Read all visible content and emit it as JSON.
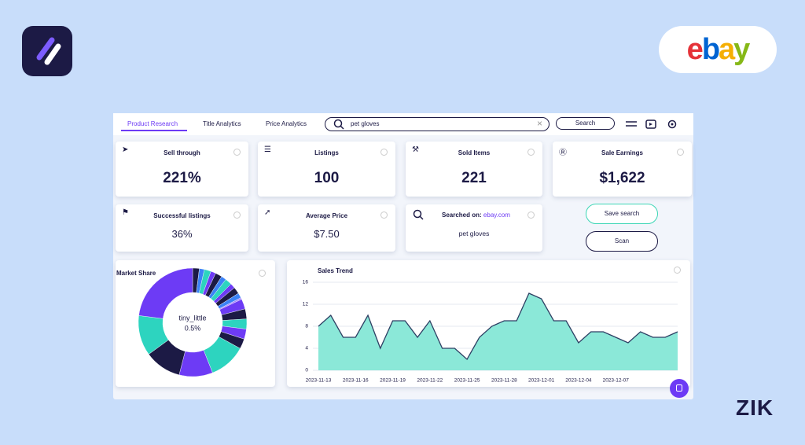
{
  "tabs": [
    "Product Research",
    "Title Analytics",
    "Price Analytics"
  ],
  "search": {
    "query": "pet gloves",
    "button": "Search"
  },
  "metrics": [
    {
      "label": "Sell through",
      "value": "221%"
    },
    {
      "label": "Listings",
      "value": "100"
    },
    {
      "label": "Sold Items",
      "value": "221"
    },
    {
      "label": "Sale Earnings",
      "value": "$1,622"
    },
    {
      "label": "Successful listings",
      "value": "36%"
    },
    {
      "label": "Average Price",
      "value": "$7.50"
    }
  ],
  "searched_on": {
    "label": "Searched on:",
    "site": "ebay.com",
    "query": "pet gloves"
  },
  "buttons": [
    "Save search",
    "Scan"
  ],
  "ebay_logo": [
    "e",
    "b",
    "a",
    "y"
  ],
  "brand": "ZIK",
  "chart_data": [
    {
      "type": "donut",
      "title": "Market Share",
      "categories": [
        null,
        null,
        null,
        null,
        null,
        null,
        null,
        null,
        null,
        null,
        "tiny_little",
        null,
        null,
        null,
        null,
        null,
        null,
        null,
        null,
        null,
        null
      ],
      "values": [
        2,
        1.5,
        2,
        1.5,
        2,
        1.5,
        2,
        1.5,
        2,
        1.5,
        0.5,
        3,
        3,
        3,
        3,
        3,
        11,
        10,
        11,
        12,
        23
      ],
      "value_labels": [
        null,
        null,
        null,
        null,
        null,
        null,
        null,
        null,
        null,
        null,
        "0.5%",
        null,
        null,
        null,
        null,
        null,
        null,
        null,
        null,
        null,
        null
      ],
      "highlight": 10,
      "colors": [
        "#1c1a45",
        "#3b82f6",
        "#2dd4bf",
        "#6d3bf5",
        "#1c1a45",
        "#3b82f6",
        "#2dd4bf",
        "#6d3bf5",
        "#1c1a45",
        "#3b82f6",
        "#a78bfa",
        "#6d3bf5",
        "#1c1a45",
        "#2dd4bf",
        "#6d3bf5",
        "#1c1a45",
        "#2dd4bf",
        "#6d3bf5",
        "#1c1a45",
        "#2dd4bf",
        "#6d3bf5"
      ]
    },
    {
      "type": "area",
      "title": "Sales Trend",
      "color": "#2d3f63",
      "fill": "#8be8d8",
      "categories": [
        "2023-11-13",
        null,
        null,
        "2023-11-16",
        null,
        null,
        "2023-11-19",
        null,
        null,
        "2023-11-22",
        null,
        null,
        "2023-11-25",
        null,
        null,
        "2023-11-28",
        null,
        null,
        "2023-12-01",
        null,
        null,
        "2023-12-04",
        null,
        null,
        "2023-12-07",
        null,
        null,
        null,
        null,
        null
      ],
      "values": [
        8,
        10,
        6,
        6,
        10,
        4,
        9,
        9,
        6,
        9,
        4,
        4,
        2,
        6,
        8,
        9,
        9,
        14,
        13,
        9,
        9,
        5,
        7,
        7,
        6,
        5,
        7,
        6,
        6,
        7
      ],
      "ylim": [
        0,
        16
      ],
      "yticks": [
        0,
        4,
        8,
        12,
        16
      ],
      "grid": true
    }
  ]
}
